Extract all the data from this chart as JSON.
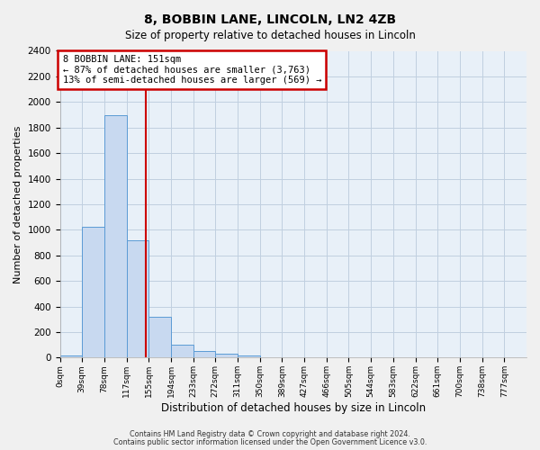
{
  "title": "8, BOBBIN LANE, LINCOLN, LN2 4ZB",
  "subtitle": "Size of property relative to detached houses in Lincoln",
  "xlabel": "Distribution of detached houses by size in Lincoln",
  "ylabel": "Number of detached properties",
  "bin_labels": [
    "0sqm",
    "39sqm",
    "78sqm",
    "117sqm",
    "155sqm",
    "194sqm",
    "233sqm",
    "272sqm",
    "311sqm",
    "350sqm",
    "389sqm",
    "427sqm",
    "466sqm",
    "505sqm",
    "544sqm",
    "583sqm",
    "622sqm",
    "661sqm",
    "700sqm",
    "738sqm",
    "777sqm"
  ],
  "bar_values": [
    20,
    1025,
    1900,
    920,
    320,
    105,
    50,
    30,
    20,
    0,
    0,
    0,
    0,
    0,
    0,
    0,
    0,
    0,
    0,
    0
  ],
  "bar_color": "#c8d9f0",
  "bar_edge_color": "#5b9bd5",
  "property_line_x": 151,
  "property_line_color": "#cc0000",
  "annotation_title": "8 BOBBIN LANE: 151sqm",
  "annotation_line1": "← 87% of detached houses are smaller (3,763)",
  "annotation_line2": "13% of semi-detached houses are larger (569) →",
  "annotation_box_color": "#ffffff",
  "annotation_box_edge_color": "#cc0000",
  "ylim": [
    0,
    2400
  ],
  "yticks": [
    0,
    200,
    400,
    600,
    800,
    1000,
    1200,
    1400,
    1600,
    1800,
    2000,
    2200,
    2400
  ],
  "grid_color": "#c0cfe0",
  "background_color": "#e8f0f8",
  "fig_background": "#f0f0f0",
  "footer_line1": "Contains HM Land Registry data © Crown copyright and database right 2024.",
  "footer_line2": "Contains public sector information licensed under the Open Government Licence v3.0.",
  "bin_width": 39,
  "n_bins_total": 20
}
